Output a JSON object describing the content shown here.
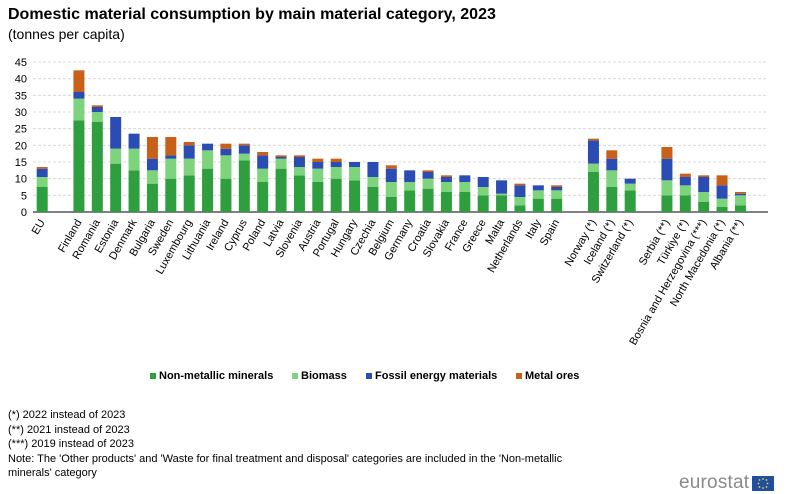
{
  "header": {
    "title": "Domestic material consumption by main material category, 2023",
    "subtitle": "(tonnes per capita)"
  },
  "notes": [
    "(*) 2022 instead of 2023",
    "(**) 2021 instead of 2023",
    "(***) 2019 instead of 2023",
    "Note: The 'Other products'  and 'Waste for final treatment and disposal' categories are included in the 'Non-metallic minerals' category"
  ],
  "branding": {
    "logo_text": "eurostat"
  },
  "chart_data": {
    "type": "bar",
    "stacked": true,
    "title": "Domestic material consumption by main material category, 2023",
    "ylabel": "tonnes per capita",
    "ylim": [
      0,
      45
    ],
    "yticks": [
      0,
      5,
      10,
      15,
      20,
      25,
      30,
      35,
      40,
      45
    ],
    "grid": true,
    "legend_position": "bottom",
    "categories": [
      "EU",
      "",
      "Finland",
      "Romania",
      "Estonia",
      "Denmark",
      "Bulgaria",
      "Sweden",
      "Luxembourg",
      "Lithuania",
      "Ireland",
      "Cyprus",
      "Poland",
      "Latvia",
      "Slovenia",
      "Austria",
      "Portugal",
      "Hungary",
      "Czechia",
      "Belgium",
      "Germany",
      "Croatia",
      "Slovakia",
      "France",
      "Greece",
      "Malta",
      "Netherlands",
      "Italy",
      "Spain",
      "",
      "Norway (*)",
      "Iceland (*)",
      "Switzerland (*)",
      "",
      "Serbia (**)",
      "Türkiye (*)",
      "Bosnia and Herzegovina (***)",
      "North Macedonia (*)",
      "Albania (**)",
      ""
    ],
    "series": [
      {
        "name": "Non-metallic minerals",
        "color": "#2e9e3e",
        "values": [
          7.5,
          null,
          27.5,
          27.0,
          14.5,
          12.5,
          8.5,
          10.0,
          11.0,
          13.0,
          10.0,
          15.5,
          9.0,
          13.0,
          11.0,
          9.0,
          10.0,
          9.5,
          7.5,
          4.5,
          6.5,
          7.0,
          6.0,
          6.0,
          5.0,
          5.0,
          2.0,
          4.0,
          4.0,
          null,
          12.0,
          7.5,
          6.5,
          null,
          5.0,
          5.0,
          3.0,
          1.5,
          2.0,
          null
        ]
      },
      {
        "name": "Biomass",
        "color": "#7ed47d",
        "values": [
          3.0,
          null,
          6.5,
          3.0,
          4.5,
          6.5,
          4.0,
          6.0,
          5.0,
          5.5,
          7.0,
          2.0,
          4.0,
          3.0,
          2.5,
          4.0,
          3.5,
          4.0,
          3.0,
          4.5,
          2.5,
          3.0,
          3.0,
          3.0,
          2.5,
          0.5,
          2.5,
          2.5,
          2.5,
          null,
          2.5,
          5.0,
          2.0,
          null,
          4.5,
          3.0,
          3.0,
          2.5,
          3.0,
          null
        ]
      },
      {
        "name": "Fossil energy materials",
        "color": "#2b4cb3",
        "values": [
          2.5,
          null,
          2.0,
          1.5,
          9.5,
          4.5,
          3.5,
          1.0,
          4.0,
          2.0,
          2.0,
          2.5,
          4.0,
          0.5,
          3.0,
          2.0,
          1.5,
          1.5,
          4.5,
          4.0,
          3.5,
          2.0,
          1.5,
          2.0,
          3.0,
          4.0,
          3.5,
          1.5,
          1.0,
          null,
          7.0,
          3.5,
          1.5,
          null,
          6.5,
          2.5,
          4.5,
          4.0,
          0.5,
          null
        ]
      },
      {
        "name": "Metal ores",
        "color": "#c8601a",
        "values": [
          0.5,
          null,
          6.5,
          0.5,
          0.0,
          0.0,
          6.5,
          5.5,
          1.0,
          0.0,
          1.5,
          0.5,
          1.0,
          0.5,
          0.5,
          1.0,
          1.0,
          0.0,
          0.0,
          1.0,
          0.0,
          0.5,
          0.5,
          0.0,
          0.0,
          0.0,
          0.5,
          0.0,
          0.5,
          null,
          0.5,
          2.5,
          0.0,
          null,
          3.5,
          1.0,
          0.5,
          3.0,
          0.5,
          null
        ]
      }
    ]
  }
}
